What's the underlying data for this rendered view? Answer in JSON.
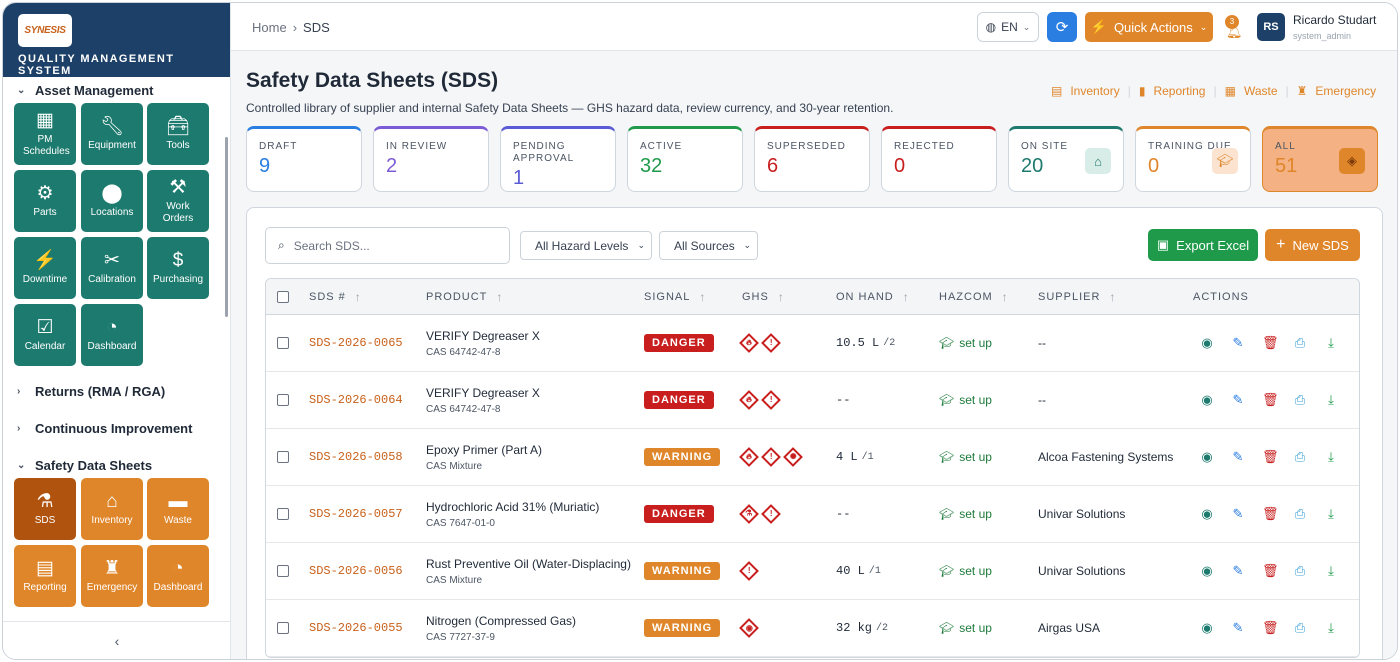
{
  "brand": {
    "logo_text": "SYNESIS",
    "system_name": "QUALITY MANAGEMENT SYSTEM"
  },
  "sidebar": {
    "asset_management": {
      "label": "Asset Management",
      "tiles": [
        {
          "label": "PM Schedules",
          "icon": "calendar-grid-icon"
        },
        {
          "label": "Equipment",
          "icon": "wrench-icon"
        },
        {
          "label": "Tools",
          "icon": "toolbox-icon"
        },
        {
          "label": "Parts",
          "icon": "gears-icon"
        },
        {
          "label": "Locations",
          "icon": "map-pin-icon"
        },
        {
          "label": "Work Orders",
          "icon": "hammer-icon"
        },
        {
          "label": "Downtime",
          "icon": "bolt-icon"
        },
        {
          "label": "Calibration",
          "icon": "tools-cross-icon"
        },
        {
          "label": "Purchasing",
          "icon": "receipt-icon"
        },
        {
          "label": "Calendar",
          "icon": "calendar-check-icon"
        },
        {
          "label": "Dashboard",
          "icon": "pie-chart-icon"
        }
      ]
    },
    "returns_label": "Returns (RMA / RGA)",
    "ci_label": "Continuous Improvement",
    "sds": {
      "label": "Safety Data Sheets",
      "tiles": [
        {
          "label": "SDS",
          "icon": "flask-icon"
        },
        {
          "label": "Inventory",
          "icon": "warehouse-icon"
        },
        {
          "label": "Waste",
          "icon": "dumpster-icon"
        },
        {
          "label": "Reporting",
          "icon": "file-report-icon"
        },
        {
          "label": "Emergency",
          "icon": "fire-extinguisher-icon"
        },
        {
          "label": "Dashboard",
          "icon": "pie-chart-icon"
        }
      ]
    }
  },
  "topbar": {
    "breadcrumb": {
      "home": "Home",
      "sep": "›",
      "current": "SDS"
    },
    "lang": "EN",
    "quick_actions": "Quick Actions",
    "notif_count": "3",
    "user": {
      "initials": "RS",
      "name": "Ricardo Studart",
      "role": "system_admin"
    }
  },
  "page": {
    "title": "Safety Data Sheets (SDS)",
    "subtitle": "Controlled library of supplier and internal Safety Data Sheets — GHS hazard data, review currency, and 30-year retention.",
    "links": [
      "Inventory",
      "Reporting",
      "Waste",
      "Emergency"
    ]
  },
  "stats": [
    {
      "label": "DRAFT",
      "value": "9",
      "color": "#2a7de1"
    },
    {
      "label": "IN REVIEW",
      "value": "2",
      "color": "#7c5cd6"
    },
    {
      "label": "PENDING APPROVAL",
      "value": "1",
      "color": "#5b5bd6"
    },
    {
      "label": "ACTIVE",
      "value": "32",
      "color": "#1e9a4a"
    },
    {
      "label": "SUPERSEDED",
      "value": "6",
      "color": "#c81e1e"
    },
    {
      "label": "REJECTED",
      "value": "0",
      "color": "#c81e1e"
    },
    {
      "label": "ON SITE",
      "value": "20",
      "color": "#1d7a6e"
    },
    {
      "label": "TRAINING DUE",
      "value": "0",
      "color": "#e0862a"
    },
    {
      "label": "ALL",
      "value": "51",
      "color": "#e0862a"
    }
  ],
  "toolbar": {
    "search_placeholder": "Search SDS...",
    "hazard_filter": "All Hazard Levels",
    "source_filter": "All Sources",
    "export": "Export Excel",
    "new_sds": "New SDS"
  },
  "table": {
    "headers": [
      "SDS #",
      "PRODUCT",
      "SIGNAL",
      "GHS",
      "ON HAND",
      "HAZCOM",
      "SUPPLIER",
      "ACTIONS"
    ],
    "rows": [
      {
        "sds": "SDS-2026-0065",
        "product": "VERIFY Degreaser X",
        "cas": "CAS 64742-47-8",
        "signal": "DANGER",
        "ghs": [
          "flame",
          "exclamation"
        ],
        "on_hand": "10.5 L",
        "on_hand_sub": "/2",
        "hazcom": "set up",
        "supplier": "--"
      },
      {
        "sds": "SDS-2026-0064",
        "product": "VERIFY Degreaser X",
        "cas": "CAS 64742-47-8",
        "signal": "DANGER",
        "ghs": [
          "flame",
          "exclamation"
        ],
        "on_hand": "--",
        "on_hand_sub": "",
        "hazcom": "set up",
        "supplier": "--"
      },
      {
        "sds": "SDS-2026-0058",
        "product": "Epoxy Primer (Part A)",
        "cas": "CAS Mixture",
        "signal": "WARNING",
        "ghs": [
          "flame",
          "exclamation",
          "environment"
        ],
        "on_hand": "4 L",
        "on_hand_sub": "/1",
        "hazcom": "set up",
        "supplier": "Alcoa Fastening Systems"
      },
      {
        "sds": "SDS-2026-0057",
        "product": "Hydrochloric Acid 31% (Muriatic)",
        "cas": "CAS 7647-01-0",
        "signal": "DANGER",
        "ghs": [
          "corrosion",
          "exclamation"
        ],
        "on_hand": "--",
        "on_hand_sub": "",
        "hazcom": "set up",
        "supplier": "Univar Solutions"
      },
      {
        "sds": "SDS-2026-0056",
        "product": "Rust Preventive Oil (Water-Displacing)",
        "cas": "CAS Mixture",
        "signal": "WARNING",
        "ghs": [
          "exclamation"
        ],
        "on_hand": "40 L",
        "on_hand_sub": "/1",
        "hazcom": "set up",
        "supplier": "Univar Solutions"
      },
      {
        "sds": "SDS-2026-0055",
        "product": "Nitrogen (Compressed Gas)",
        "cas": "CAS 7727-37-9",
        "signal": "WARNING",
        "ghs": [
          "gas-cylinder"
        ],
        "on_hand": "32 kg",
        "on_hand_sub": "/2",
        "hazcom": "set up",
        "supplier": "Airgas USA"
      }
    ]
  },
  "colors": {
    "danger": "#c81e1e",
    "warning": "#e0862a",
    "teal": "#1d7a6e",
    "navy": "#1d4068",
    "link_orange": "#c8611b"
  }
}
